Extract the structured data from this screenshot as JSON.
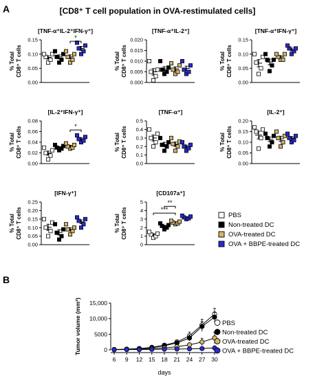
{
  "panel_labels": {
    "a": "A",
    "b": "B"
  },
  "main_title": "[CD8⁺ T cell population in OVA-restimulated cells]",
  "colors": {
    "pbs": "#ffffff",
    "nontreated": "#000000",
    "ova": "#d4b46a",
    "bbpe": "#2a2ad6"
  },
  "legend_a": [
    {
      "label": "PBS",
      "color": "#ffffff"
    },
    {
      "label": "Non-treated DC",
      "color": "#000000"
    },
    {
      "label": "OVA-treated DC",
      "color": "#d4b46a"
    },
    {
      "label": "OVA + BBPE-treated DC",
      "color": "#2a2ad6"
    }
  ],
  "legend_b": [
    {
      "label": "PBS",
      "color": "#ffffff"
    },
    {
      "label": "Non-treated DC",
      "color": "#000000"
    },
    {
      "label": "OVA-treated DC",
      "color": "#d4b46a"
    },
    {
      "label": "OVA + BBPE-treated DC",
      "color": "#2a2ad6"
    }
  ],
  "chart_data": [
    {
      "type": "scatter",
      "title": "[TNF-α⁺IL-2⁺IFN-γ⁺]",
      "ylabel": [
        "% Total",
        "CD8⁺ T cells"
      ],
      "ylim": [
        0,
        0.15
      ],
      "yticks": [
        "0.00",
        "0.05",
        "0.10",
        "0.15"
      ],
      "tickvals": [
        0,
        0.05,
        0.1,
        0.15
      ],
      "groups": [
        [
          0.07,
          0.08,
          0.09,
          0.1,
          0.1
        ],
        [
          0.07,
          0.08,
          0.09,
          0.1,
          0.11
        ],
        [
          0.07,
          0.08,
          0.09,
          0.1,
          0.11
        ],
        [
          0.1,
          0.11,
          0.12,
          0.13,
          0.14
        ]
      ],
      "sig": [
        {
          "from": 2,
          "to": 3,
          "label": "*",
          "y": 0.145
        }
      ]
    },
    {
      "type": "scatter",
      "title": "[TNF-α⁺IL-2⁺]",
      "ylabel": [
        "% Total",
        "CD8⁺ T cells"
      ],
      "ylim": [
        0,
        0.02
      ],
      "yticks": [
        "0.000",
        "0.005",
        "0.010",
        "0.015",
        "0.020"
      ],
      "tickvals": [
        0,
        0.005,
        0.01,
        0.015,
        0.02
      ],
      "groups": [
        [
          0.001,
          0.003,
          0.005,
          0.006,
          0.01
        ],
        [
          0.004,
          0.005,
          0.006,
          0.007,
          0.01
        ],
        [
          0.004,
          0.005,
          0.006,
          0.008,
          0.009
        ],
        [
          0.004,
          0.005,
          0.006,
          0.008,
          0.01
        ]
      ],
      "sig": []
    },
    {
      "type": "scatter",
      "title": "[TNF-α⁺IFN-γ⁺]",
      "ylabel": [
        "% Total",
        "CD8⁺ T cells"
      ],
      "ylim": [
        0,
        0.15
      ],
      "yticks": [
        "0.00",
        "0.05",
        "0.10",
        "0.15"
      ],
      "tickvals": [
        0,
        0.05,
        0.1,
        0.15
      ],
      "groups": [
        [
          0.03,
          0.05,
          0.07,
          0.09,
          0.1
        ],
        [
          0.04,
          0.06,
          0.08,
          0.08,
          0.1
        ],
        [
          0.08,
          0.08,
          0.09,
          0.1,
          0.1
        ],
        [
          0.1,
          0.11,
          0.12,
          0.12,
          0.13
        ]
      ],
      "sig": []
    },
    {
      "type": "scatter",
      "title": "[IL-2⁺IFN-γ⁺]",
      "ylabel": [
        "% Total",
        "CD8⁺ T cells"
      ],
      "ylim": [
        0,
        0.08
      ],
      "yticks": [
        "0.00",
        "0.02",
        "0.04",
        "0.06",
        "0.08"
      ],
      "tickvals": [
        0,
        0.02,
        0.04,
        0.06,
        0.08
      ],
      "groups": [
        [
          0.008,
          0.015,
          0.02,
          0.025,
          0.03
        ],
        [
          0.025,
          0.028,
          0.03,
          0.033,
          0.035
        ],
        [
          0.028,
          0.03,
          0.032,
          0.035,
          0.038
        ],
        [
          0.04,
          0.043,
          0.046,
          0.05,
          0.053
        ]
      ],
      "sig": [
        {
          "from": 2,
          "to": 3,
          "label": "*",
          "y": 0.063
        }
      ]
    },
    {
      "type": "scatter",
      "title": "[TNF-α⁺]",
      "ylabel": [
        "% Total",
        "CD8⁺ T cells"
      ],
      "ylim": [
        0,
        0.5
      ],
      "yticks": [
        "0.0",
        "0.1",
        "0.2",
        "0.3",
        "0.4",
        "0.5"
      ],
      "tickvals": [
        0,
        0.1,
        0.2,
        0.3,
        0.4,
        0.5
      ],
      "groups": [
        [
          0.2,
          0.25,
          0.3,
          0.35,
          0.4
        ],
        [
          0.15,
          0.2,
          0.22,
          0.25,
          0.3
        ],
        [
          0.15,
          0.2,
          0.23,
          0.26,
          0.3
        ],
        [
          0.15,
          0.18,
          0.2,
          0.22,
          0.25
        ]
      ],
      "sig": []
    },
    {
      "type": "scatter",
      "title": "[IL-2⁺]",
      "ylabel": [
        "% Total",
        "CD8⁺ T cells"
      ],
      "ylim": [
        0,
        0.2
      ],
      "yticks": [
        "0.00",
        "0.05",
        "0.10",
        "0.15",
        "0.20"
      ],
      "tickvals": [
        0,
        0.05,
        0.1,
        0.15,
        0.2
      ],
      "groups": [
        [
          0.07,
          0.12,
          0.15,
          0.16,
          0.17
        ],
        [
          0.08,
          0.1,
          0.12,
          0.13,
          0.14
        ],
        [
          0.08,
          0.1,
          0.12,
          0.13,
          0.15
        ],
        [
          0.1,
          0.11,
          0.12,
          0.13,
          0.14
        ]
      ],
      "sig": []
    },
    {
      "type": "scatter",
      "title": "[IFN-γ⁺]",
      "ylabel": [
        "% Total",
        "CD8⁺ T cells"
      ],
      "ylim": [
        0,
        0.25
      ],
      "yticks": [
        "0.00",
        "0.05",
        "0.10",
        "0.15",
        "0.20",
        "0.25"
      ],
      "tickvals": [
        0,
        0.05,
        0.1,
        0.15,
        0.2,
        0.25
      ],
      "groups": [
        [
          0.05,
          0.08,
          0.1,
          0.13,
          0.15
        ],
        [
          0.03,
          0.05,
          0.07,
          0.09,
          0.12
        ],
        [
          0.06,
          0.08,
          0.09,
          0.1,
          0.12
        ],
        [
          0.1,
          0.12,
          0.14,
          0.15,
          0.16
        ]
      ],
      "sig": []
    },
    {
      "type": "scatter",
      "title": "[CD107a⁺]",
      "ylabel": [
        "% Total",
        "CD8⁺ T cells"
      ],
      "ylim": [
        0,
        5
      ],
      "yticks": [
        "0",
        "1",
        "2",
        "3",
        "4",
        "5"
      ],
      "tickvals": [
        0,
        1,
        2,
        3,
        4,
        5
      ],
      "groups": [
        [
          0.8,
          1.0,
          1.2,
          1.3,
          1.5
        ],
        [
          1.8,
          2.0,
          2.2,
          2.3,
          2.5
        ],
        [
          2.4,
          2.5,
          2.6,
          2.7,
          2.8
        ],
        [
          3.0,
          3.1,
          3.2,
          3.3,
          3.4
        ]
      ],
      "sig": [
        {
          "from": 1,
          "to": 2,
          "label": "**",
          "y": 4.5
        },
        {
          "from": 0,
          "to": 2,
          "label": "***",
          "y": 3.7
        }
      ]
    },
    {
      "type": "line",
      "xlabel": "days",
      "ylabel": "Tumor volume  (mm³)",
      "x": [
        6,
        9,
        12,
        15,
        18,
        21,
        24,
        27,
        30
      ],
      "xticks": [
        "6",
        "9",
        "12",
        "15",
        "18",
        "21",
        "24",
        "27",
        "30"
      ],
      "ylim": [
        0,
        15000
      ],
      "yticks": [
        "0",
        "5000",
        "10,000",
        "15,000"
      ],
      "tickvals": [
        0,
        5000,
        10000,
        15000
      ],
      "series": [
        {
          "name": "PBS",
          "values": [
            100,
            200,
            400,
            800,
            1500,
            2500,
            4500,
            8000,
            11500
          ],
          "err": [
            30,
            60,
            120,
            250,
            400,
            700,
            1200,
            1800,
            1800
          ]
        },
        {
          "name": "Non-treated DC",
          "values": [
            100,
            200,
            400,
            700,
            1300,
            2200,
            3800,
            7500,
            10500
          ],
          "err": [
            30,
            60,
            120,
            200,
            350,
            600,
            1000,
            1600,
            1500
          ]
        },
        {
          "name": "OVA-treated DC",
          "values": [
            80,
            150,
            250,
            400,
            600,
            1000,
            1600,
            2500,
            3800
          ],
          "err": [
            20,
            40,
            80,
            120,
            200,
            300,
            600,
            1200,
            1800
          ]
        },
        {
          "name": "OVA + BBPE-treated DC",
          "values": [
            50,
            80,
            100,
            150,
            200,
            250,
            300,
            400,
            600
          ],
          "err": [
            15,
            20,
            30,
            40,
            50,
            60,
            80,
            120,
            200
          ]
        }
      ]
    }
  ]
}
